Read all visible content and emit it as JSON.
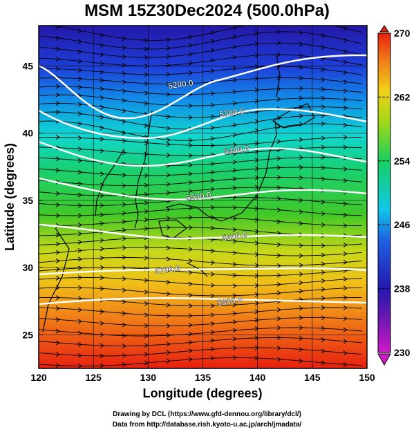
{
  "title": "MSM 15Z30Dec2024 (500.0hPa)",
  "x_axis": {
    "label": "Longitude (degrees)",
    "ticks": [
      120,
      125,
      130,
      135,
      140,
      145,
      150
    ]
  },
  "y_axis": {
    "label": "Latitude  (degrees)",
    "ticks": [
      25,
      30,
      35,
      40,
      45
    ]
  },
  "colorbar": {
    "ticks": [
      230,
      238,
      246,
      254,
      262,
      270
    ],
    "min": 230,
    "max": 270
  },
  "contours": [
    {
      "label": "5200.0"
    },
    {
      "label": "5300.0"
    },
    {
      "label": "5400.0"
    },
    {
      "label": "5500.0"
    },
    {
      "label": "5600.0"
    },
    {
      "label": "5700.0"
    },
    {
      "label": "5800.0"
    }
  ],
  "credits": {
    "line1": "Drawing by DCL (https://www.gfd-dennou.org/library/dcl/)",
    "line2": "Data from http://database.rish.kyoto-u.ac.jp/arch/jmadata/"
  },
  "colors": {
    "cold": "#2a1aa8",
    "mid": "#18c848",
    "warm": "#f01818"
  }
}
